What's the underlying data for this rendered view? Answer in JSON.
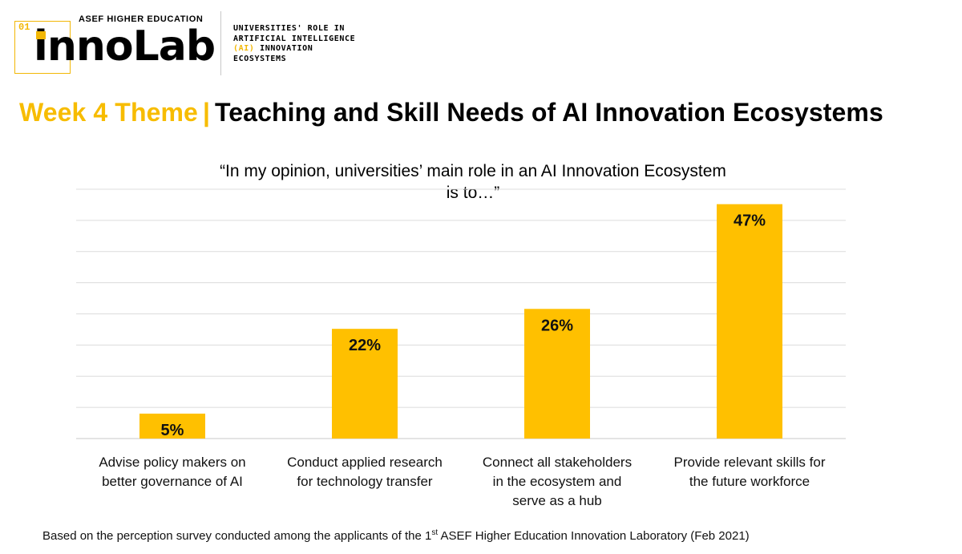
{
  "logo": {
    "number": "01",
    "top_text": "ASEF HIGHER EDUCATION",
    "word_first": "i",
    "word_rest": "nnoLab",
    "subtitle_line1": "UNIVERSITIES' ROLE IN",
    "subtitle_line2": "ARTIFICIAL INTELLIGENCE",
    "subtitle_line3_hl": "(AI)",
    "subtitle_line3_rest": " INNOVATION",
    "subtitle_line4": "ECOSYSTEMS",
    "accent_color": "#f2b705"
  },
  "header": {
    "theme_label": "Week 4 Theme",
    "separator": "|",
    "title": "Teaching and Skill Needs of AI Innovation Ecosystems"
  },
  "chart_data": {
    "type": "bar",
    "title_line1": "“In my opinion, universities’ main role in an AI Innovation Ecosystem",
    "title_line2": "is to…”",
    "categories": [
      [
        "Advise policy makers on",
        "better governance of AI"
      ],
      [
        "Conduct applied research",
        "for technology transfer"
      ],
      [
        "Connect all stakeholders",
        "in the ecosystem and",
        "serve as a hub"
      ],
      [
        "Provide relevant skills for",
        "the future workforce"
      ]
    ],
    "values": [
      5,
      22,
      26,
      47
    ],
    "data_labels": [
      "5%",
      "22%",
      "26%",
      "47%"
    ],
    "ylim": [
      0,
      50
    ],
    "grid": true,
    "bar_color": "#ffc000"
  },
  "footnote": {
    "before": "Based on the perception survey conducted among the applicants of the 1",
    "sup": "st",
    "after": " ASEF Higher Education Innovation Laboratory (Feb 2021)"
  }
}
